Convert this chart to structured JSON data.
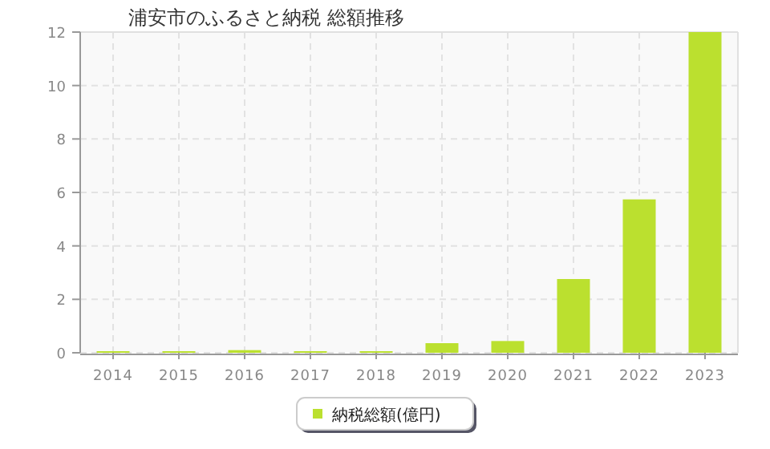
{
  "chart_data": {
    "type": "bar",
    "title": "浦安市のふるさと納税  総額推移",
    "categories": [
      "2014",
      "2015",
      "2016",
      "2017",
      "2018",
      "2019",
      "2020",
      "2021",
      "2022",
      "2023"
    ],
    "series": [
      {
        "name": "納税総額(億円)",
        "color": "#bbe02f",
        "values": [
          0.06,
          0.06,
          0.1,
          0.06,
          0.06,
          0.36,
          0.44,
          2.76,
          5.74,
          12.0
        ]
      }
    ],
    "ylim": [
      0,
      12
    ],
    "yticks": [
      0,
      2,
      4,
      6,
      8,
      10,
      12
    ],
    "grid": true,
    "legend": "bottom"
  }
}
